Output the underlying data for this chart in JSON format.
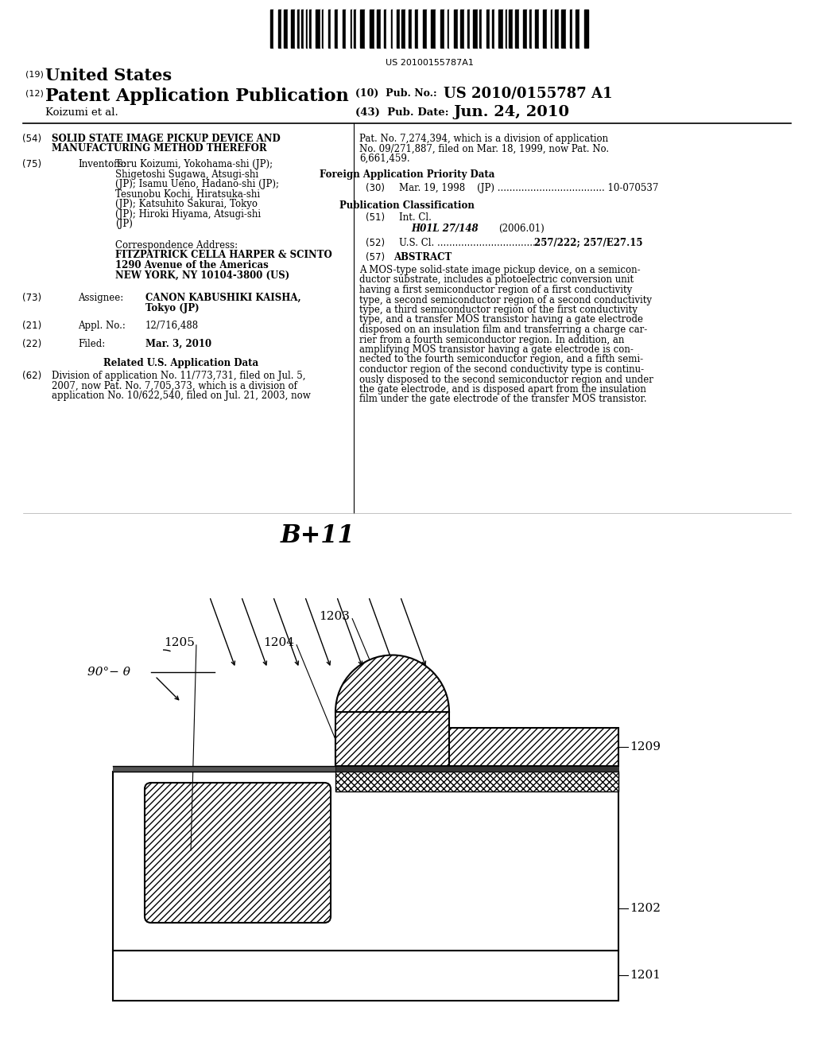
{
  "background_color": "#ffffff",
  "barcode_text": "US 20100155787A1",
  "header": {
    "country": "United States",
    "type": "Patent Application Publication",
    "pub_no_label": "(10)  Pub. No.:",
    "pub_no": "US 2010/0155787 A1",
    "author": "Koizumi et al.",
    "date_label": "(43)  Pub. Date:",
    "date": "Jun. 24, 2010"
  },
  "left_col": {
    "title": "SOLID STATE IMAGE PICKUP DEVICE AND\nMANUFACTURING METHOD THEREFOR",
    "inventors_text": "Toru Koizumi, Yokohama-shi (JP);\nShigetoshi Sugawa, Atsugi-shi\n(JP); Isamu Ueno, Hadano-shi (JP);\nTesunobu Kochi, Hiratsuka-shi\n(JP); Katsuhito Sakurai, Tokyo\n(JP); Hiroki Hiyama, Atsugi-shi\n(JP)",
    "corr_label": "Correspondence Address:",
    "corr_line1": "FITZPATRICK CELLA HARPER & SCINTO",
    "corr_line2": "1290 Avenue of the Americas",
    "corr_line3": "NEW YORK, NY 10104-3800 (US)",
    "assignee_text": "CANON KABUSHIKI KAISHA,\nTokyo (JP)",
    "appl_val": "12/716,488",
    "filed_val": "Mar. 3, 2010",
    "related_header": "Related U.S. Application Data",
    "related_text": "Division of application No. 11/773,731, filed on Jul. 5,\n2007, now Pat. No. 7,705,373, which is a division of\napplication No. 10/622,540, filed on Jul. 21, 2003, now"
  },
  "right_col": {
    "continuation_text": "Pat. No. 7,274,394, which is a division of application\nNo. 09/271,887, filed on Mar. 18, 1999, now Pat. No.\n6,661,459.",
    "foreign_header": "Foreign Application Priority Data",
    "foreign_text": "Mar. 19, 1998    (JP) .................................... 10-070537",
    "pub_class_header": "Publication Classification",
    "intcl_label": "Int. Cl.",
    "intcl_val": "H01L 27/148",
    "intcl_date": "(2006.01)",
    "uscl_label": "U.S. Cl.",
    "uscl_dots": " ..................................",
    "uscl_val": "257/222; 257/E27.15",
    "abstract_header": "ABSTRACT",
    "abstract_text": "A MOS-type solid-state image pickup device, on a semicon-\nductor substrate, includes a photoelectric conversion unit\nhaving a first semiconductor region of a first conductivity\ntype, a second semiconductor region of a second conductivity\ntype, a third semiconductor region of the first conductivity\ntype, and a transfer MOS transistor having a gate electrode\ndisposed on an insulation film and transferring a charge car-\nrier from a fourth semiconductor region. In addition, an\namplifying MOS transistor having a gate electrode is con-\nnected to the fourth semiconductor region, and a fifth semi-\nconductor region of the second conductivity type is continu-\nously disposed to the second semiconductor region and under\nthe gate electrode, and is disposed apart from the insulation\nfilm under the gate electrode of the transfer MOS transistor."
  },
  "diagram": {
    "title": "B+11",
    "angle_label": "90°− θ"
  }
}
